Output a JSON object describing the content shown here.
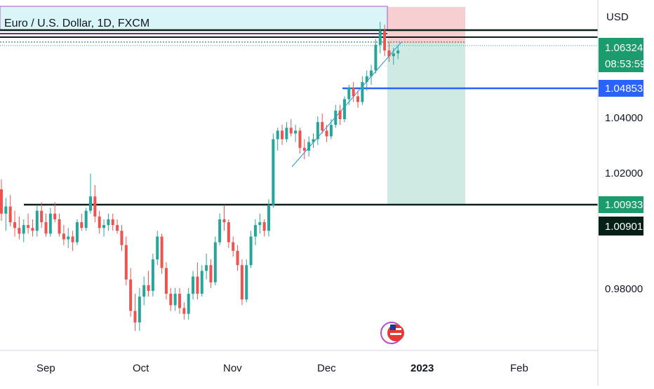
{
  "symbol": {
    "title": "Euro / U.S. Dollar, 1D, FXCM"
  },
  "price_axis": {
    "currency": "USD",
    "ticks": [
      "1.04000",
      "1.02000",
      "0.98000"
    ],
    "current_price": "1.06324",
    "countdown": "08:53:59",
    "blue_level_label": "1.04853",
    "green_level_label": "1.00933",
    "dark_level_label": "1.00901"
  },
  "time_axis": {
    "labels": [
      "Sep",
      "Oct",
      "Nov",
      "Dec",
      "2023",
      "Feb"
    ]
  },
  "colors": {
    "up": "#26a69a",
    "down": "#ef5350",
    "blue_line": "#2962ff",
    "dark_line": "#0b1f1b",
    "label_green": "#1b9c6e",
    "label_dark": "#062018",
    "stop_zone": "#f8cfd0",
    "target_zone": "#cfeae3",
    "title_box": "#d9f5f8"
  },
  "chart_data": {
    "type": "candlestick",
    "title": "Euro / U.S. Dollar, 1D, FXCM",
    "ylabel": "USD",
    "y_ticks": [
      1.04,
      1.02,
      0.98
    ],
    "ylim": [
      0.961,
      1.0765
    ],
    "x_labels": [
      "Sep",
      "Oct",
      "Nov",
      "Dec",
      "2023",
      "Feb"
    ],
    "horizontal_levels": [
      {
        "price": 1.04853,
        "color": "#2962ff"
      },
      {
        "price": 1.00933,
        "color": "#0b1f1b"
      },
      {
        "price": 1.0725,
        "color": "#0b1f1b"
      },
      {
        "price": 1.0695,
        "color": "#0b1f1b"
      }
    ],
    "position_tool": {
      "entry": 1.0635,
      "stop": 1.076,
      "target": 1.0093
    },
    "trendline": [
      [
        1.0225,
        1.0635
      ]
    ],
    "candles": [
      [
        1.015,
        1.0185,
        1.004,
        1.0065
      ],
      [
        1.0065,
        1.012,
        1.0005,
        1.009
      ],
      [
        1.009,
        1.013,
        1.002,
        1.0035
      ],
      [
        1.0035,
        1.0075,
        0.9985,
        1.0015
      ],
      [
        1.0015,
        1.0055,
        0.9975,
        0.9995
      ],
      [
        0.9995,
        1.0045,
        0.9965,
        1.0025
      ],
      [
        1.0025,
        1.0065,
        0.9995,
        1.0015
      ],
      [
        1.0015,
        1.0045,
        0.9985,
        1.0005
      ],
      [
        1.0005,
        1.0095,
        0.9985,
        1.0075
      ],
      [
        1.0075,
        1.0105,
        1.0015,
        1.0035
      ],
      [
        1.0035,
        1.0065,
        0.9985,
        0.9995
      ],
      [
        0.9995,
        1.0085,
        0.9985,
        1.0065
      ],
      [
        1.0065,
        1.0105,
        1.0035,
        1.0045
      ],
      [
        1.0045,
        1.0065,
        0.9985,
        0.9995
      ],
      [
        0.9995,
        1.0025,
        0.9955,
        0.9975
      ],
      [
        0.9975,
        1.0015,
        0.9945,
        0.9985
      ],
      [
        0.9985,
        1.0005,
        0.9935,
        0.9965
      ],
      [
        0.9965,
        1.0045,
        0.9955,
        1.0035
      ],
      [
        1.0035,
        1.0065,
        1.0005,
        1.0015
      ],
      [
        1.0015,
        1.0085,
        1.0005,
        1.0075
      ],
      [
        1.0075,
        1.0205,
        1.0065,
        1.0125
      ],
      [
        1.0125,
        1.0165,
        1.0035,
        1.0055
      ],
      [
        1.0055,
        1.0075,
        0.9995,
        1.0015
      ],
      [
        1.0015,
        1.0045,
        0.9985,
        1.0025
      ],
      [
        1.0025,
        1.0065,
        1.0005,
        1.0045
      ],
      [
        1.0045,
        1.0065,
        1.0005,
        1.0025
      ],
      [
        1.0025,
        1.0045,
        0.9995,
        1.0005
      ],
      [
        1.0005,
        1.0025,
        0.9935,
        0.9955
      ],
      [
        0.9955,
        0.9985,
        0.9815,
        0.9835
      ],
      [
        0.9835,
        0.9875,
        0.9705,
        0.9725
      ],
      [
        0.9725,
        0.9785,
        0.9655,
        0.9685
      ],
      [
        0.9685,
        0.9805,
        0.9655,
        0.9775
      ],
      [
        0.9775,
        0.9845,
        0.9745,
        0.9815
      ],
      [
        0.9815,
        0.9865,
        0.9775,
        0.9795
      ],
      [
        0.9795,
        0.9925,
        0.9775,
        0.9905
      ],
      [
        0.9905,
        1.0005,
        0.9885,
        0.9985
      ],
      [
        0.9985,
        0.9995,
        0.9855,
        0.9875
      ],
      [
        0.9875,
        0.9895,
        0.9765,
        0.9785
      ],
      [
        0.9785,
        0.9805,
        0.9725,
        0.9745
      ],
      [
        0.9745,
        0.9805,
        0.9725,
        0.9785
      ],
      [
        0.9785,
        0.9805,
        0.9715,
        0.9735
      ],
      [
        0.9735,
        0.9755,
        0.9695,
        0.9715
      ],
      [
        0.9715,
        0.9805,
        0.9695,
        0.9785
      ],
      [
        0.9785,
        0.9865,
        0.9765,
        0.9845
      ],
      [
        0.9845,
        0.9895,
        0.9765,
        0.9785
      ],
      [
        0.9785,
        0.9885,
        0.9775,
        0.9865
      ],
      [
        0.9865,
        0.9925,
        0.9835,
        0.9885
      ],
      [
        0.9885,
        0.9905,
        0.9805,
        0.9825
      ],
      [
        0.9825,
        0.9985,
        0.9815,
        0.9965
      ],
      [
        0.9965,
        1.0065,
        0.9955,
        1.0045
      ],
      [
        1.0045,
        1.0095,
        1.0005,
        1.0035
      ],
      [
        1.0035,
        1.0045,
        0.9945,
        0.9965
      ],
      [
        0.9965,
        0.9985,
        0.9915,
        0.9935
      ],
      [
        0.9935,
        0.9955,
        0.9865,
        0.9885
      ],
      [
        0.9885,
        0.9905,
        0.9745,
        0.9765
      ],
      [
        0.9765,
        0.9905,
        0.9755,
        0.9885
      ],
      [
        0.9885,
        1.0005,
        0.9875,
        0.9985
      ],
      [
        0.9985,
        1.0045,
        0.9955,
        1.0025
      ],
      [
        1.0025,
        1.0065,
        0.9995,
        1.0035
      ],
      [
        1.0035,
        1.0045,
        0.9985,
        1.0005
      ],
      [
        1.0005,
        1.0115,
        0.9985,
        1.0095
      ],
      [
        1.0095,
        1.0345,
        1.0085,
        1.0325
      ],
      [
        1.0325,
        1.0365,
        1.0285,
        1.0355
      ],
      [
        1.0355,
        1.0375,
        1.0305,
        1.0325
      ],
      [
        1.0325,
        1.0385,
        1.0315,
        1.0365
      ],
      [
        1.0365,
        1.0395,
        1.0335,
        1.0345
      ],
      [
        1.0345,
        1.0375,
        1.0315,
        1.0355
      ],
      [
        1.0355,
        1.0365,
        1.0275,
        1.0295
      ],
      [
        1.0295,
        1.0325,
        1.0255,
        1.0285
      ],
      [
        1.0285,
        1.0335,
        1.0265,
        1.0315
      ],
      [
        1.0315,
        1.0345,
        1.0295,
        1.0325
      ],
      [
        1.0325,
        1.0405,
        1.0305,
        1.0385
      ],
      [
        1.0385,
        1.0415,
        1.0345,
        1.0355
      ],
      [
        1.0355,
        1.0375,
        1.0315,
        1.0335
      ],
      [
        1.0335,
        1.0395,
        1.0325,
        1.0375
      ],
      [
        1.0375,
        1.0445,
        1.0365,
        1.0425
      ],
      [
        1.0425,
        1.0445,
        1.0375,
        1.0395
      ],
      [
        1.0395,
        1.0475,
        1.0385,
        1.0465
      ],
      [
        1.0465,
        1.0515,
        1.0445,
        1.0505
      ],
      [
        1.0505,
        1.0525,
        1.0455,
        1.0475
      ],
      [
        1.0475,
        1.0495,
        1.0435,
        1.0455
      ],
      [
        1.0455,
        1.0545,
        1.0445,
        1.0525
      ],
      [
        1.0525,
        1.0565,
        1.0495,
        1.0545
      ],
      [
        1.0545,
        1.0585,
        1.0515,
        1.0565
      ],
      [
        1.0565,
        1.0675,
        1.0555,
        1.0655
      ],
      [
        1.0655,
        1.0735,
        1.0625,
        1.0705
      ],
      [
        1.0705,
        1.0725,
        1.0615,
        1.0635
      ],
      [
        1.0635,
        1.0665,
        1.0595,
        1.0615
      ],
      [
        1.0615,
        1.0645,
        1.0585,
        1.0625
      ],
      [
        1.0625,
        1.0655,
        1.0605,
        1.0635
      ]
    ]
  }
}
